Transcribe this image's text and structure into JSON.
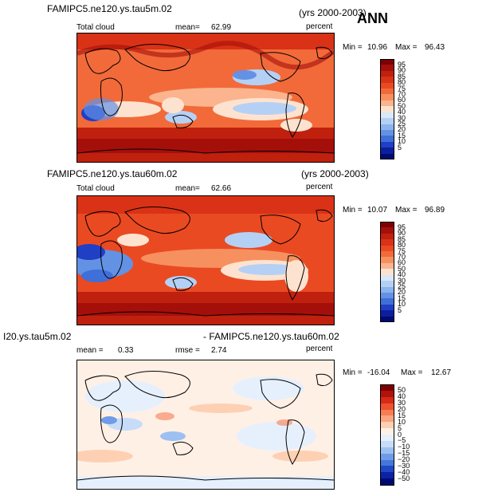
{
  "season": "ANN",
  "panels": [
    {
      "case_title": "FAMIPC5.ne120.ys.tau5m.02",
      "years": "(yrs 2000-2003)",
      "left_label": "Total cloud",
      "mean_label": "mean=",
      "mean_value": "62.99",
      "units": "percent",
      "min_label": "Min =",
      "min_value": "10.96",
      "max_label": "Max =",
      "max_value": "96.43",
      "colorbar_type": "absolute",
      "colorbar_levels": [
        "95",
        "90",
        "85",
        "80",
        "75",
        "70",
        "60",
        "50",
        "40",
        "30",
        "25",
        "20",
        "15",
        "10",
        "5"
      ]
    },
    {
      "case_title": "FAMIPC5.ne120.ys.tau60m.02",
      "years": "(yrs 2000-2003)",
      "left_label": "Total cloud",
      "mean_label": "mean=",
      "mean_value": "62.66",
      "units": "percent",
      "min_label": "Min =",
      "min_value": "10.07",
      "max_label": "Max =",
      "max_value": "96.89",
      "colorbar_type": "absolute",
      "colorbar_levels": [
        "95",
        "90",
        "85",
        "80",
        "75",
        "70",
        "60",
        "50",
        "40",
        "30",
        "25",
        "20",
        "15",
        "10",
        "5"
      ]
    },
    {
      "case_title_left": "I20.ys.tau5m.02",
      "case_title_right": "- FAMIPC5.ne120.ys.tau60m.02",
      "left_label": "mean =",
      "mean_value": "0.33",
      "rmse_label": "rmse =",
      "rmse_value": "2.74",
      "units": "percent",
      "min_label": "Min =",
      "min_value": "-16.04",
      "max_label": "Max =",
      "max_value": "12.67",
      "colorbar_type": "difference",
      "colorbar_levels": [
        "50",
        "40",
        "30",
        "20",
        "15",
        "10",
        "5",
        "0",
        "−5",
        "−10",
        "−15",
        "−20",
        "−30",
        "−40",
        "−50"
      ]
    }
  ],
  "colors": {
    "abs_scale": [
      "#7f0000",
      "#a50f0a",
      "#c0200e",
      "#d93216",
      "#ea4a22",
      "#f26a3a",
      "#f7905f",
      "#fbb48e",
      "#fde3cf",
      "#d9e8fa",
      "#b5d0f5",
      "#8bb3ee",
      "#6392e5",
      "#3f6fd8",
      "#1f3fc4",
      "#0b1f9e",
      "#000a73"
    ],
    "diff_scale": [
      "#7f0000",
      "#b0120c",
      "#d62a14",
      "#ef5030",
      "#f67c54",
      "#fba47e",
      "#fdd0b4",
      "#fff0e6",
      "#e6f0fd",
      "#c6dcf8",
      "#9cc0f1",
      "#6f9ce7",
      "#4577db",
      "#2048c4",
      "#0a22a3",
      "#000a73"
    ]
  }
}
